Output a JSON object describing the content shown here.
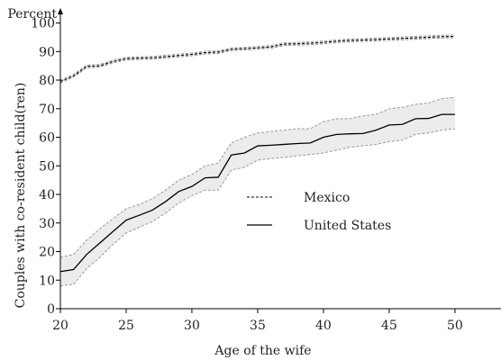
{
  "chart_data": {
    "type": "line",
    "y_unit_label": "Percent",
    "ylabel": "Couples with co-resident child(ren)",
    "xlabel": "Age of the wife",
    "xlim": [
      20,
      53.5
    ],
    "ylim": [
      0,
      103
    ],
    "x_ticks": [
      20,
      25,
      30,
      35,
      40,
      45,
      50
    ],
    "y_ticks": [
      0,
      10,
      20,
      30,
      40,
      50,
      60,
      70,
      80,
      90,
      100
    ],
    "grid": false,
    "legend_position": "center",
    "series": [
      {
        "name": "Mexico",
        "line_style": "dashed",
        "x": [
          20,
          21,
          22,
          23,
          24,
          25,
          26,
          27,
          28,
          29,
          30,
          31,
          32,
          33,
          34,
          35,
          36,
          37,
          38,
          39,
          40,
          41,
          42,
          43,
          44,
          45,
          46,
          47,
          48,
          49,
          50
        ],
        "y": [
          79.5,
          81.5,
          84.8,
          85,
          86.5,
          87.5,
          87.7,
          87.8,
          88.2,
          88.6,
          89,
          89.6,
          89.8,
          90.8,
          91,
          91.3,
          91.6,
          92.6,
          92.7,
          92.9,
          93.2,
          93.6,
          93.9,
          94,
          94.2,
          94.4,
          94.6,
          94.8,
          95,
          95.2,
          95.3
        ],
        "ci_lower": [
          79,
          81,
          84.3,
          84.5,
          86,
          87,
          87.2,
          87.3,
          87.7,
          88.1,
          88.5,
          89.1,
          89.3,
          90.3,
          90.5,
          90.8,
          91.1,
          92.1,
          92.2,
          92.4,
          92.7,
          93.1,
          93.4,
          93.5,
          93.7,
          93.9,
          94.1,
          94.3,
          94.5,
          94.7,
          94.8
        ],
        "ci_upper": [
          80,
          82,
          85.3,
          85.5,
          87,
          88,
          88.2,
          88.3,
          88.7,
          89.1,
          89.5,
          90.1,
          90.3,
          91.3,
          91.5,
          91.8,
          92.1,
          93.1,
          93.2,
          93.4,
          93.7,
          94.1,
          94.4,
          94.5,
          94.7,
          94.9,
          95.1,
          95.3,
          95.5,
          95.7,
          95.8
        ]
      },
      {
        "name": "United States",
        "line_style": "solid",
        "x": [
          20,
          21,
          22,
          23,
          24,
          25,
          26,
          27,
          28,
          29,
          30,
          31,
          32,
          33,
          34,
          35,
          36,
          37,
          38,
          39,
          40,
          41,
          42,
          43,
          44,
          45,
          46,
          47,
          48,
          49,
          50
        ],
        "y": [
          13,
          13.7,
          19,
          23,
          27,
          31,
          32.7,
          34.5,
          37.5,
          41,
          42.8,
          45.8,
          46,
          53.8,
          54.5,
          57,
          57.2,
          57.5,
          57.8,
          58,
          60,
          61,
          61.2,
          61.3,
          62.5,
          64.3,
          64.5,
          66.5,
          66.6,
          68,
          68
        ],
        "ci_lower": [
          8,
          8.5,
          14,
          18,
          22.5,
          26.5,
          28.5,
          30.5,
          33.5,
          37,
          39.5,
          41.5,
          41.5,
          48.5,
          49.5,
          52,
          52.5,
          53,
          53.5,
          54,
          54.5,
          55.5,
          56.5,
          57,
          57.5,
          58.5,
          59,
          61,
          61.5,
          62.5,
          63
        ],
        "ci_upper": [
          18,
          19,
          24,
          28,
          31.5,
          35,
          36.5,
          38.5,
          41.5,
          45,
          47,
          50,
          51,
          58,
          60,
          61.5,
          62,
          62.5,
          63,
          63,
          65.5,
          66.5,
          66.5,
          67.5,
          68,
          70,
          70.5,
          71.5,
          72,
          73.5,
          74
        ]
      }
    ]
  }
}
